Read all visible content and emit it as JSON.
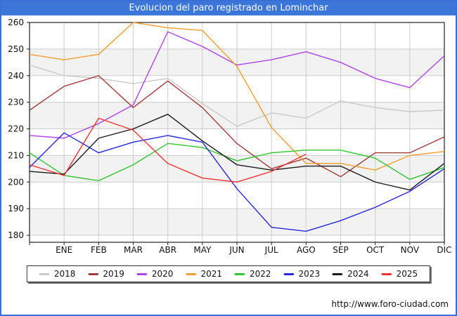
{
  "title": "Evolucion del paro registrado en Lominchar",
  "footer": {
    "url_text": "http://www.foro-ciudad.com"
  },
  "colors": {
    "frame_border": "#3b6fd8",
    "titlebar_bg": "#3b76d8",
    "titlebar_text": "#ffffff",
    "plot_border": "#222222",
    "grid_color": "#cccccc",
    "band_color": "#f2f2f2",
    "tick_label_color": "#111111"
  },
  "chart_data": {
    "type": "line",
    "title": "Evolucion del paro registrado en Lominchar",
    "xlabel": "",
    "ylabel": "",
    "months": [
      "ENE",
      "FEB",
      "MAR",
      "ABR",
      "MAY",
      "JUN",
      "JUL",
      "AGO",
      "SEP",
      "OCT",
      "NOV",
      "DIC"
    ],
    "x_note": "Each series has 13 points: the first is the previous year's December value drawn at the left axis border, followed by the 12 monthly values ENE..DIC.",
    "y_axis": {
      "min": 180,
      "max": 260,
      "tick_step": 10,
      "tick_labels": [
        "260",
        "250",
        "240",
        "230",
        "220",
        "210",
        "200",
        "190",
        "180"
      ]
    },
    "grid": true,
    "legend_position": "bottom",
    "series": [
      {
        "name": "2018",
        "color": "#c9c9c9",
        "values": [
          244,
          240,
          239,
          237,
          239,
          229.5,
          221,
          226,
          224,
          230.5,
          228,
          226.5,
          227
        ]
      },
      {
        "name": "2019",
        "color": "#a03c3c",
        "values": [
          227,
          236,
          240,
          228,
          238,
          228,
          214.5,
          205,
          209,
          202,
          211,
          211,
          217
        ]
      },
      {
        "name": "2020",
        "color": "#ad42e8",
        "values": [
          217.5,
          216.5,
          222,
          229,
          256.5,
          251,
          244,
          246,
          249,
          245,
          239,
          235.5,
          247.5
        ]
      },
      {
        "name": "2021",
        "color": "#f0a030",
        "values": [
          248,
          246,
          248,
          260,
          258,
          257,
          243.5,
          220.5,
          207,
          207,
          204.5,
          210,
          211.5
        ]
      },
      {
        "name": "2022",
        "color": "#2fc42f",
        "values": [
          211,
          202.5,
          200.5,
          206.5,
          214.5,
          213,
          208,
          211,
          212,
          212,
          209,
          201,
          205.5
        ]
      },
      {
        "name": "2023",
        "color": "#2727dd",
        "values": [
          205.5,
          218.5,
          211,
          215,
          217.5,
          215,
          197.5,
          183,
          181.5,
          185.5,
          190.5,
          196.5,
          205
        ]
      },
      {
        "name": "2024",
        "color": "#1a1a1a",
        "values": [
          204,
          203,
          216.5,
          220,
          225.5,
          215.5,
          206.5,
          204.5,
          206,
          206,
          200,
          197,
          207
        ]
      },
      {
        "name": "2025",
        "color": "#ef3333",
        "values": [
          206.5,
          202.5,
          224,
          219.5,
          207,
          201.5,
          200,
          204,
          210.5,
          null,
          null,
          null,
          null
        ]
      }
    ]
  }
}
